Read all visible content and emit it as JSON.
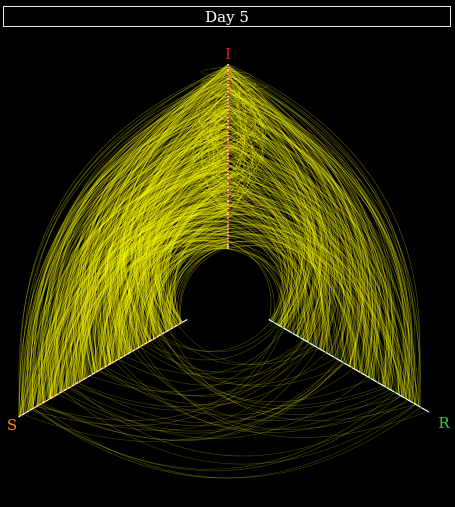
{
  "title": "Day 5",
  "axes": [
    {
      "label": "I",
      "color": "#e0202c"
    },
    {
      "label": "S",
      "color": "#ff8c00"
    },
    {
      "label": "R",
      "color": "#2ecc40"
    }
  ],
  "colors": {
    "background": "#000000",
    "edge": "#ffff00",
    "axis_line": "#ffffff",
    "title_border": "#e8e8e8"
  }
}
